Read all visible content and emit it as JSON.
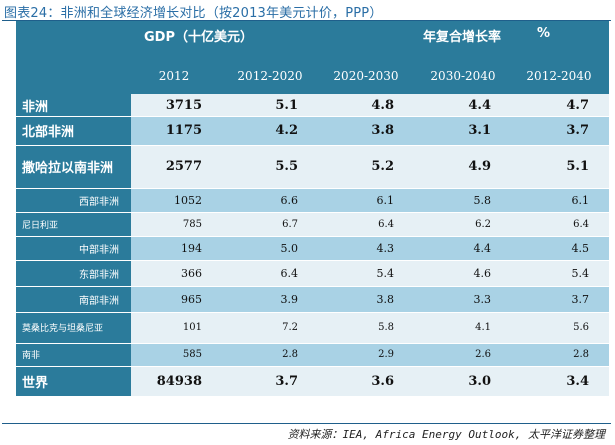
{
  "title": "图表24：非洲和全球经济增长对比（按2013年美元计价，PPP）",
  "header": {
    "gdp_label": "GDP（十亿美元）",
    "growth_label": "年复合增长率",
    "percent_label": "%",
    "columns": [
      "2012",
      "2012-2020",
      "2020-2030",
      "2030-2040",
      "2012-2040"
    ]
  },
  "rows": [
    {
      "label": "非洲",
      "values": [
        "3715",
        "5.1",
        "4.8",
        "4.4",
        "4.7"
      ],
      "type": "major",
      "shade": "light"
    },
    {
      "label": "北部非洲",
      "values": [
        "1175",
        "4.2",
        "3.8",
        "3.1",
        "3.7"
      ],
      "type": "major",
      "shade": "blue"
    },
    {
      "label": "撒哈拉以南非洲",
      "values": [
        "2577",
        "5.5",
        "5.2",
        "4.9",
        "5.1"
      ],
      "type": "major",
      "shade": "light"
    },
    {
      "label": "西部非洲",
      "values": [
        "1052",
        "6.6",
        "6.1",
        "5.8",
        "6.1"
      ],
      "type": "minor",
      "shade": "blue"
    },
    {
      "label": "尼日利亚",
      "values": [
        "785",
        "6.7",
        "6.4",
        "6.2",
        "6.4"
      ],
      "type": "small",
      "shade": "light"
    },
    {
      "label": "中部非洲",
      "values": [
        "194",
        "5.0",
        "4.3",
        "4.4",
        "4.5"
      ],
      "type": "minor",
      "shade": "blue"
    },
    {
      "label": "东部非洲",
      "values": [
        "366",
        "6.4",
        "5.4",
        "4.6",
        "5.4"
      ],
      "type": "minor",
      "shade": "light"
    },
    {
      "label": "南部非洲",
      "values": [
        "965",
        "3.9",
        "3.8",
        "3.3",
        "3.7"
      ],
      "type": "minor",
      "shade": "blue"
    },
    {
      "label": "莫桑比克与坦桑尼亚",
      "values": [
        "101",
        "7.2",
        "5.8",
        "4.1",
        "5.6"
      ],
      "type": "small",
      "shade": "light"
    },
    {
      "label": "南非",
      "values": [
        "585",
        "2.8",
        "2.9",
        "2.6",
        "2.8"
      ],
      "type": "small",
      "shade": "blue"
    },
    {
      "label": "世界",
      "values": [
        "84938",
        "3.7",
        "3.6",
        "3.0",
        "3.4"
      ],
      "type": "major",
      "shade": "light"
    }
  ],
  "source": "资料来源：IEA, Africa Energy Outlook, 太平洋证券整理"
}
